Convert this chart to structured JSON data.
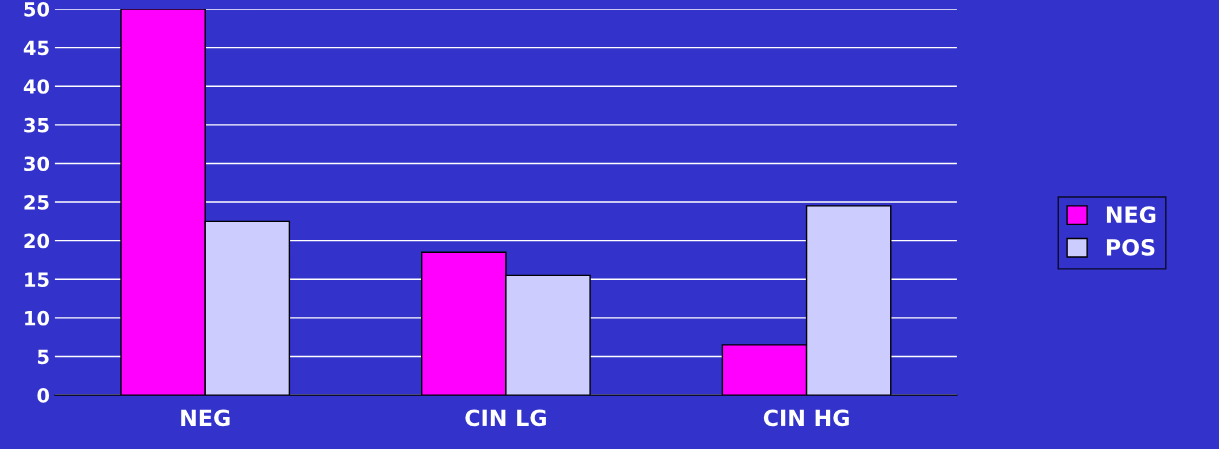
{
  "chart_data": {
    "type": "bar",
    "categories": [
      "NEG",
      "CIN LG",
      "CIN HG"
    ],
    "series": [
      {
        "name": "NEG",
        "color": "#ff00ff",
        "values": [
          50,
          18.5,
          6.5
        ]
      },
      {
        "name": "POS",
        "color": "#ccccff",
        "values": [
          22.5,
          15.5,
          24.5
        ]
      }
    ],
    "ylim": [
      0,
      50
    ],
    "yticks": [
      0,
      5,
      10,
      15,
      20,
      25,
      30,
      35,
      40,
      45,
      50
    ],
    "grid": "y",
    "legend": "right"
  }
}
